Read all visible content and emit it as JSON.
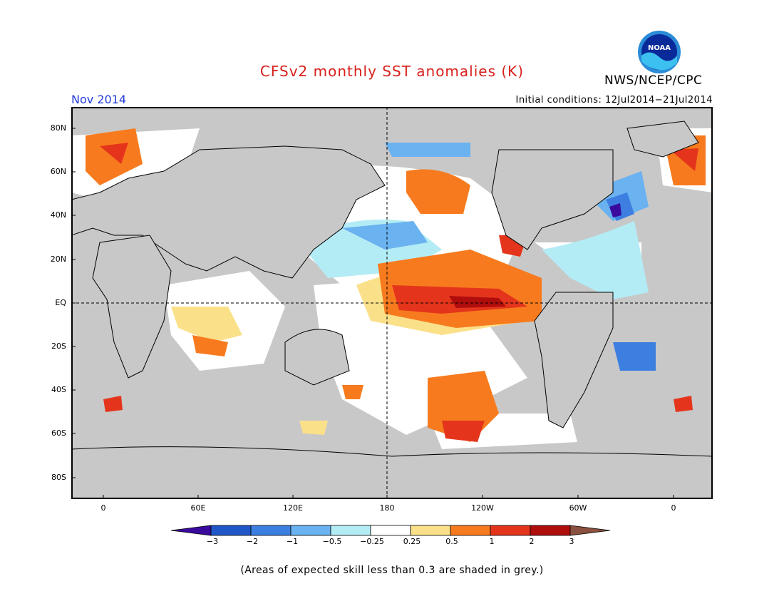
{
  "title": "CFSv2 monthly SST anomalies (K)",
  "agency": "NWS/NCEP/CPC",
  "logo_text": "NOAA",
  "month_label": "Nov 2014",
  "initial_conditions": "Initial conditions: 12Jul2014−21Jul2014",
  "lat_labels": [
    "80N",
    "60N",
    "40N",
    "20N",
    "EQ",
    "20S",
    "40S",
    "60S",
    "80S"
  ],
  "lon_labels": [
    "0",
    "60E",
    "120E",
    "180",
    "120W",
    "60W",
    "0"
  ],
  "colorbar": {
    "labels": [
      "−3",
      "−2",
      "−1",
      "−0.5",
      "−0.25",
      "0.25",
      "0.5",
      "1",
      "2",
      "3"
    ],
    "colors": [
      "#3a0a9e",
      "#1f56c8",
      "#3c7fe0",
      "#6ab2f0",
      "#b3ecf5",
      "#ffffff",
      "#fbe08a",
      "#f77b1e",
      "#e4351c",
      "#b00d0d",
      "#8a5040"
    ]
  },
  "footnote": "(Areas of expected skill less than 0.3 are shaded in grey.)",
  "colors": {
    "title": "#d8201c",
    "month": "#1f3bd6",
    "skill_mask": "#c8c8c8",
    "land": "#ffffff"
  }
}
